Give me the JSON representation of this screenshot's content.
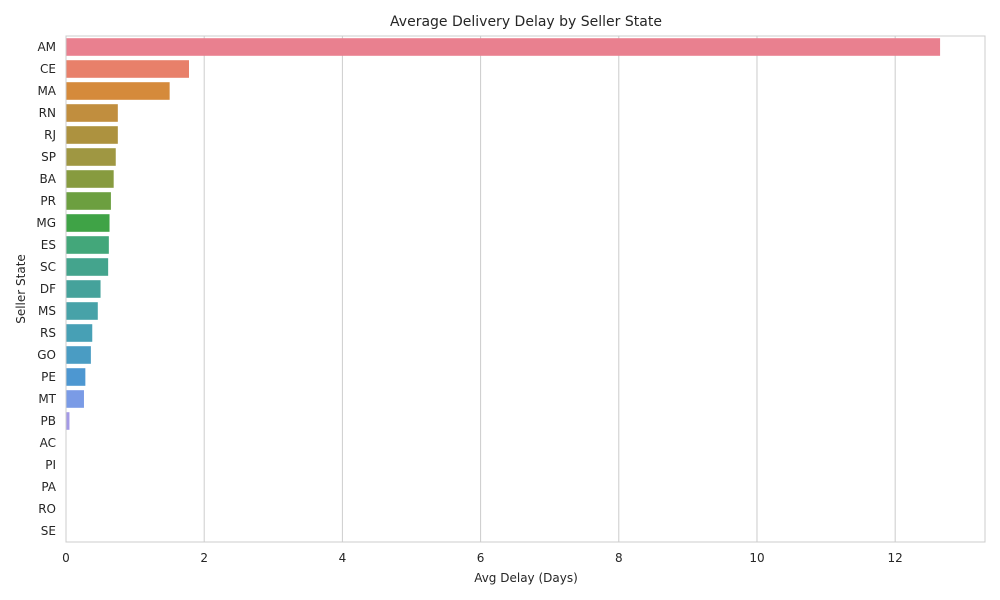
{
  "chart_data": {
    "type": "bar",
    "orientation": "horizontal",
    "title": "Average Delivery Delay by Seller State",
    "xlabel": "Avg Delay (Days)",
    "ylabel": "Seller State",
    "xlim": [
      0,
      13.3
    ],
    "xticks": [
      0,
      2,
      4,
      6,
      8,
      10,
      12
    ],
    "grid": true,
    "categories": [
      "AM",
      "CE",
      "MA",
      "RN",
      "RJ",
      "SP",
      "BA",
      "PR",
      "MG",
      "ES",
      "SC",
      "DF",
      "MS",
      "RS",
      "GO",
      "PE",
      "MT",
      "PB",
      "AC",
      "PI",
      "PA",
      "RO",
      "SE"
    ],
    "values": [
      12.65,
      1.78,
      1.5,
      0.75,
      0.75,
      0.72,
      0.69,
      0.65,
      0.63,
      0.62,
      0.61,
      0.5,
      0.46,
      0.38,
      0.36,
      0.28,
      0.26,
      0.05,
      0,
      0,
      0,
      0,
      0
    ],
    "colors": [
      "#e9808f",
      "#e8806a",
      "#d58a3b",
      "#c18e3e",
      "#ad923f",
      "#9f9742",
      "#879b3f",
      "#6c9f40",
      "#3fa346",
      "#43a77a",
      "#44a48d",
      "#45a29b",
      "#47a2a8",
      "#47a0b5",
      "#4a9cc3",
      "#4d97d1",
      "#7a9be6",
      "#a49ae6",
      "#c99ae6",
      "#e19ae0",
      "#e89acf",
      "#e99abf",
      "#e99ab0"
    ]
  }
}
